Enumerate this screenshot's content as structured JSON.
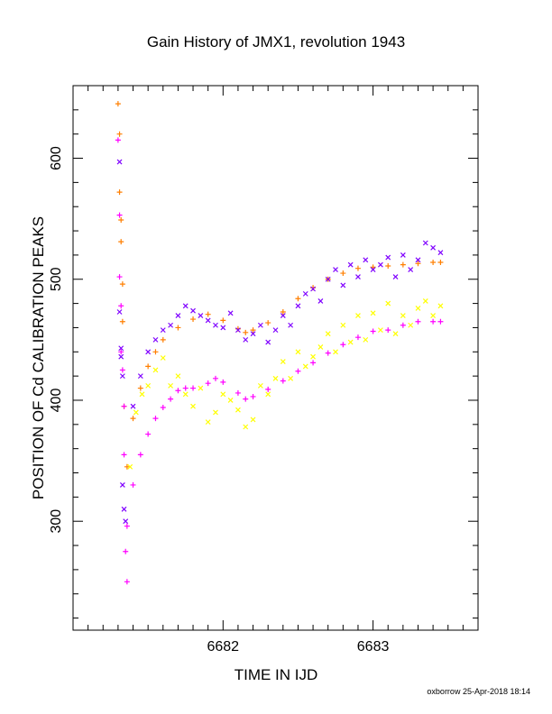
{
  "chart_data": {
    "type": "scatter",
    "title": "Gain History of JMX1, revolution 1943",
    "xlabel": "TIME IN IJD",
    "ylabel": "POSITION OF Cd CALIBRATION PEAKS",
    "xlim": [
      6681.0,
      6683.7
    ],
    "ylim": [
      210,
      660
    ],
    "x_ticks": [
      6682,
      6683
    ],
    "y_ticks": [
      300,
      400,
      500,
      600
    ],
    "x_tick_labels": [
      "6682",
      "6683"
    ],
    "y_tick_labels": [
      "300",
      "400",
      "500",
      "600"
    ],
    "grid": false,
    "legend": "none",
    "series": [
      {
        "marker": "+",
        "color": "#ff7f00",
        "x": [
          6681.3,
          6681.31,
          6681.31,
          6681.32,
          6681.32,
          6681.33,
          6681.33,
          6681.34
        ],
        "y": [
          645,
          620,
          572,
          549,
          531,
          496,
          465,
          395
        ]
      },
      {
        "marker": "+",
        "color": "#ff00ff",
        "x": [
          6681.3,
          6681.31,
          6681.31,
          6681.32,
          6681.32,
          6681.33,
          6681.34,
          6681.34,
          6681.35,
          6681.36
        ],
        "y": [
          615,
          553,
          502,
          478,
          440,
          425,
          395,
          355,
          275,
          250
        ]
      },
      {
        "marker": "x",
        "color": "#7f00ff",
        "x": [
          6681.31,
          6681.31,
          6681.32,
          6681.32,
          6681.33,
          6681.33,
          6681.34,
          6681.35
        ],
        "y": [
          597,
          473,
          443,
          436,
          420,
          330,
          310,
          300
        ]
      },
      {
        "marker": "+",
        "color": "#ff7f00",
        "name": "",
        "x": [
          6681.36,
          6681.4,
          6681.45,
          6681.5,
          6681.55,
          6681.6,
          6681.7,
          6681.8,
          6681.9,
          6682.0,
          6682.1,
          6682.15,
          6682.2,
          6682.3,
          6682.4,
          6682.5,
          6682.6,
          6682.7,
          6682.8,
          6682.9,
          6683.0,
          6683.1,
          6683.2,
          6683.3,
          6683.4,
          6683.45
        ],
        "y": [
          345,
          385,
          410,
          428,
          440,
          450,
          460,
          467,
          471,
          466,
          459,
          456,
          458,
          464,
          473,
          484,
          493,
          500,
          505,
          509,
          510,
          511,
          512,
          513,
          514,
          514
        ]
      },
      {
        "marker": "+",
        "color": "#ff00ff",
        "name": "",
        "x": [
          6681.36,
          6681.4,
          6681.45,
          6681.5,
          6681.55,
          6681.6,
          6681.65,
          6681.7,
          6681.75,
          6681.8,
          6681.9,
          6681.95,
          6682.0,
          6682.1,
          6682.15,
          6682.2,
          6682.3,
          6682.4,
          6682.5,
          6682.6,
          6682.7,
          6682.8,
          6682.9,
          6683.0,
          6683.1,
          6683.2,
          6683.3,
          6683.4,
          6683.45
        ],
        "y": [
          296,
          330,
          355,
          372,
          385,
          394,
          401,
          408,
          410,
          410,
          414,
          418,
          415,
          406,
          401,
          403,
          409,
          416,
          424,
          431,
          439,
          446,
          452,
          457,
          458,
          462,
          465,
          465,
          465
        ]
      },
      {
        "marker": "x",
        "color": "#7f00ff",
        "name": "",
        "x": [
          6681.4,
          6681.45,
          6681.5,
          6681.55,
          6681.6,
          6681.65,
          6681.7,
          6681.75,
          6681.8,
          6681.85,
          6681.9,
          6681.95,
          6682.0,
          6682.05,
          6682.1,
          6682.15,
          6682.2,
          6682.25,
          6682.3,
          6682.35,
          6682.4,
          6682.45,
          6682.5,
          6682.55,
          6682.6,
          6682.65,
          6682.7,
          6682.75,
          6682.8,
          6682.85,
          6682.9,
          6682.95,
          6683.0,
          6683.05,
          6683.1,
          6683.15,
          6683.2,
          6683.25,
          6683.3,
          6683.35,
          6683.4,
          6683.45
        ],
        "y": [
          395,
          420,
          440,
          450,
          458,
          462,
          470,
          478,
          474,
          470,
          466,
          462,
          460,
          472,
          458,
          450,
          455,
          462,
          448,
          458,
          470,
          462,
          478,
          488,
          492,
          482,
          500,
          508,
          495,
          512,
          502,
          516,
          508,
          512,
          518,
          502,
          520,
          508,
          516,
          530,
          526,
          522
        ]
      },
      {
        "marker": "x",
        "color": "#ffff00",
        "name": "",
        "x": [
          6681.38,
          6681.42,
          6681.46,
          6681.5,
          6681.55,
          6681.6,
          6681.65,
          6681.7,
          6681.75,
          6681.8,
          6681.85,
          6681.9,
          6681.95,
          6682.0,
          6682.05,
          6682.1,
          6682.15,
          6682.2,
          6682.25,
          6682.3,
          6682.35,
          6682.4,
          6682.45,
          6682.5,
          6682.55,
          6682.6,
          6682.65,
          6682.7,
          6682.75,
          6682.8,
          6682.85,
          6682.9,
          6682.95,
          6683.0,
          6683.05,
          6683.1,
          6683.15,
          6683.2,
          6683.25,
          6683.3,
          6683.35,
          6683.4,
          6683.45
        ],
        "y": [
          345,
          390,
          405,
          412,
          425,
          435,
          412,
          420,
          405,
          395,
          410,
          382,
          390,
          405,
          400,
          392,
          378,
          384,
          412,
          405,
          418,
          432,
          418,
          440,
          428,
          436,
          444,
          455,
          440,
          462,
          448,
          470,
          450,
          472,
          458,
          480,
          455,
          470,
          462,
          476,
          482,
          470,
          478
        ]
      }
    ]
  },
  "footer": "oxborrow 25-Apr-2018 18:14"
}
